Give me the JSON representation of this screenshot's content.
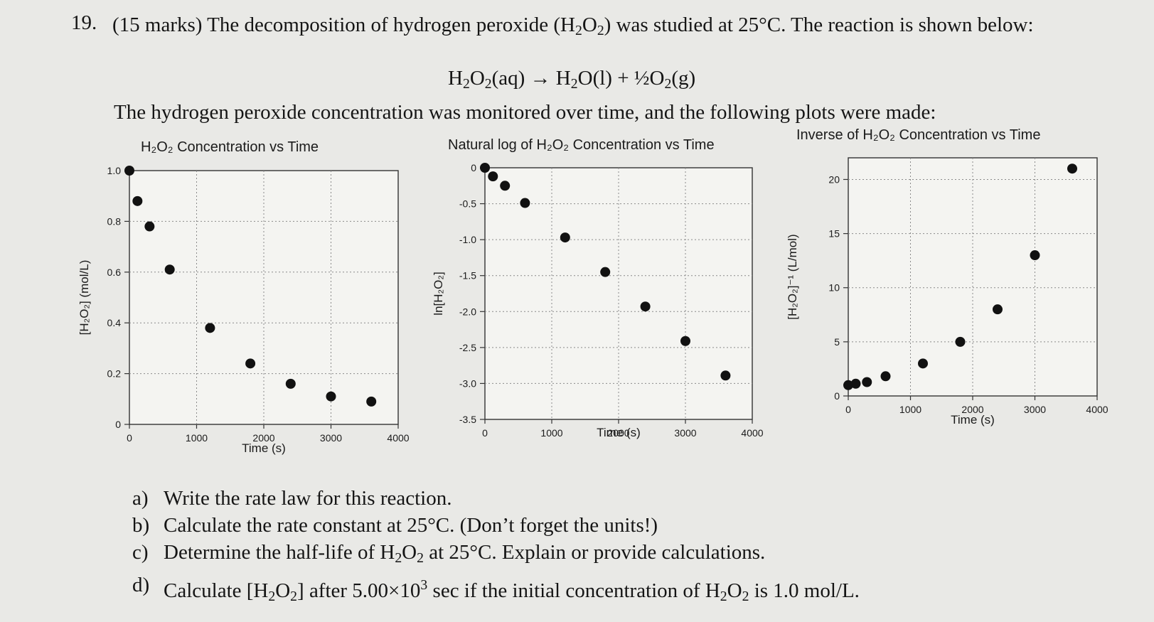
{
  "question": {
    "number": "19.",
    "text_pre": "(15 marks) The decomposition of hydrogen peroxide (H",
    "sub1": "2",
    "text_mid": "O",
    "sub2": "2",
    "text_post": ") was studied at 25°C. The reaction is shown below:"
  },
  "reaction": {
    "r1": "H",
    "r1s": "2",
    "r2": "O",
    "r2s": "2",
    "r3": "(aq) → H",
    "r3s": "2",
    "r4": "O(l) + ½O",
    "r4s": "2",
    "r5": "(g)"
  },
  "intro": "The hydrogen peroxide concentration was monitored over time, and the following plots were made:",
  "chart_data": [
    {
      "type": "scatter",
      "title": "H₂O₂ Concentration vs Time",
      "xlabel": "Time (s)",
      "ylabel": "[H₂O₂] (mol/L)",
      "xlim": [
        0,
        4000
      ],
      "ylim": [
        0,
        1.0
      ],
      "xticks": [
        "0",
        "1000",
        "2000",
        "3000",
        "4000"
      ],
      "yticks": [
        "0",
        "0.2",
        "0.4",
        "0.6",
        "0.8",
        "1.0"
      ],
      "grid": true,
      "x": [
        0,
        120,
        300,
        600,
        1200,
        1800,
        2400,
        3000,
        3600
      ],
      "y": [
        1.0,
        0.88,
        0.78,
        0.61,
        0.38,
        0.24,
        0.16,
        0.11,
        0.09
      ]
    },
    {
      "type": "scatter",
      "title": "Natural log of H₂O₂ Concentration vs Time",
      "xlabel": "Time (s)",
      "ylabel": "ln[H₂O₂]",
      "xlim": [
        0,
        4000
      ],
      "ylim": [
        -3.5,
        0
      ],
      "xticks": [
        "0",
        "1000",
        "2000",
        "3000",
        "4000"
      ],
      "yticks": [
        "0",
        "-0.5",
        "-1.0",
        "-1.5",
        "-2.0",
        "-2.5",
        "-3.0",
        "-3.5"
      ],
      "grid": true,
      "x": [
        0,
        120,
        300,
        600,
        1200,
        1800,
        2400,
        3000,
        3600
      ],
      "y": [
        0,
        -0.12,
        -0.25,
        -0.49,
        -0.97,
        -1.45,
        -1.93,
        -2.41,
        -2.89
      ]
    },
    {
      "type": "scatter",
      "title": "Inverse of H₂O₂ Concentration vs Time",
      "xlabel": "Time (s)",
      "ylabel": "[H₂O₂]⁻¹ (L/mol)",
      "xlim": [
        0,
        4000
      ],
      "ylim": [
        0,
        22
      ],
      "xticks": [
        "0",
        "1000",
        "2000",
        "3000",
        "4000"
      ],
      "yticks": [
        "0",
        "5",
        "10",
        "15",
        "20"
      ],
      "grid": true,
      "x": [
        0,
        120,
        300,
        600,
        1200,
        1800,
        2400,
        3000,
        3600
      ],
      "y": [
        1.0,
        1.13,
        1.28,
        1.82,
        3.0,
        5.0,
        8.0,
        13.0,
        21.0
      ]
    }
  ],
  "parts": [
    {
      "label": "a)",
      "text": "Write the rate law for this reaction."
    },
    {
      "label": "b)",
      "text": "Calculate the rate constant at 25°C. (Don’t forget the units!)"
    },
    {
      "label": "c)",
      "pre": "Determine the half-life of H",
      "s1": "2",
      "mid": "O",
      "s2": "2",
      "post": " at 25°C. Explain or provide calculations."
    },
    {
      "label": "d)",
      "pre": "Calculate [H",
      "s1": "2",
      "mid": "O",
      "s2": "2",
      "post1": "] after 5.00×10",
      "sup": "3",
      "post2": " sec if the initial concentration of H",
      "s3": "2",
      "mid2": "O",
      "s4": "2",
      "post3": " is 1.0 mol/L."
    }
  ]
}
